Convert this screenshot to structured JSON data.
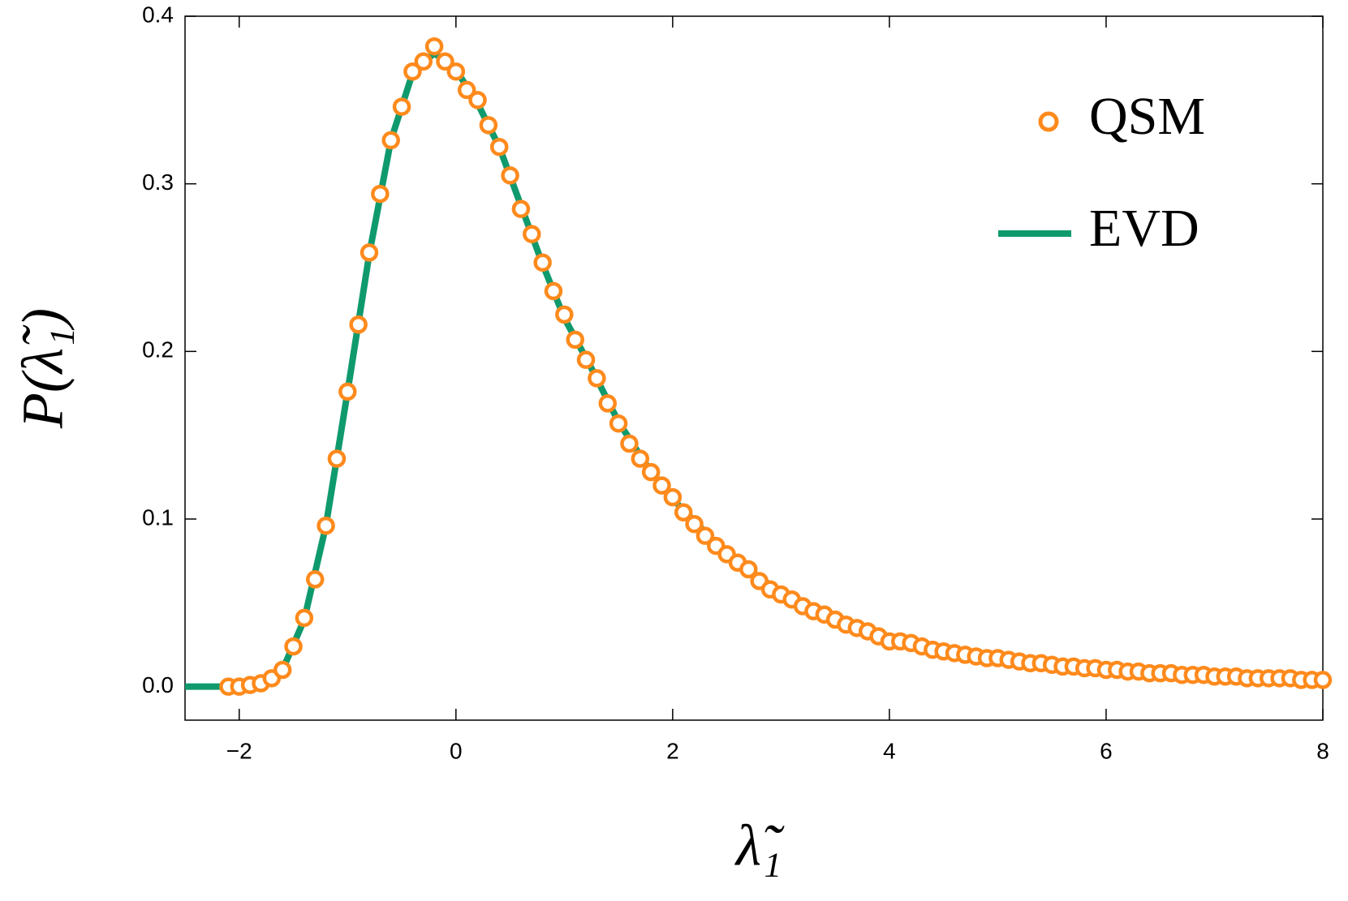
{
  "chart_data": {
    "type": "line-scatter",
    "x_label": "λ̃₁",
    "y_label": "P(λ̃₁)",
    "xlim": [
      -2.5,
      8
    ],
    "ylim": [
      -0.02,
      0.4
    ],
    "xticks": [
      {
        "value": -2,
        "label": "−2"
      },
      0,
      2,
      4,
      6,
      8
    ],
    "yticks": [
      {
        "value": 0,
        "label": "0.0"
      },
      0.1,
      0.2,
      0.3,
      0.4
    ],
    "legend": "top-right",
    "series": [
      {
        "name": "QSM",
        "kind": "scatter",
        "color": "#ff8a1c",
        "x": [
          -2.1,
          -2.0,
          -1.9,
          -1.8,
          -1.7,
          -1.6,
          -1.5,
          -1.4,
          -1.3,
          -1.2,
          -1.1,
          -1.0,
          -0.9,
          -0.8,
          -0.7,
          -0.6,
          -0.5,
          -0.4,
          -0.3,
          -0.2,
          -0.1,
          0.0,
          0.1,
          0.2,
          0.3,
          0.4,
          0.5,
          0.6,
          0.7,
          0.8,
          0.9,
          1.0,
          1.1,
          1.2,
          1.3,
          1.4,
          1.5,
          1.6,
          1.7,
          1.8,
          1.9,
          2.0,
          2.1,
          2.2,
          2.3,
          2.4,
          2.5,
          2.6,
          2.7,
          2.8,
          2.9,
          3.0,
          3.1,
          3.2,
          3.3,
          3.4,
          3.5,
          3.6,
          3.7,
          3.8,
          3.9,
          4.0,
          4.1,
          4.2,
          4.3,
          4.4,
          4.5,
          4.6,
          4.7,
          4.8,
          4.9,
          5.0,
          5.1,
          5.2,
          5.3,
          5.4,
          5.5,
          5.6,
          5.7,
          5.8,
          5.9,
          6.0,
          6.1,
          6.2,
          6.3,
          6.4,
          6.5,
          6.6,
          6.7,
          6.8,
          6.9,
          7.0,
          7.1,
          7.2,
          7.3,
          7.4,
          7.5,
          7.6,
          7.7,
          7.8,
          7.9,
          8.0
        ],
        "values": [
          0.0,
          0.0,
          0.001,
          0.002,
          0.005,
          0.01,
          0.024,
          0.041,
          0.064,
          0.096,
          0.136,
          0.176,
          0.216,
          0.259,
          0.294,
          0.326,
          0.346,
          0.367,
          0.373,
          0.382,
          0.373,
          0.367,
          0.356,
          0.35,
          0.335,
          0.322,
          0.305,
          0.285,
          0.27,
          0.253,
          0.236,
          0.222,
          0.207,
          0.195,
          0.184,
          0.169,
          0.157,
          0.145,
          0.136,
          0.128,
          0.12,
          0.113,
          0.104,
          0.097,
          0.09,
          0.084,
          0.079,
          0.074,
          0.07,
          0.063,
          0.058,
          0.055,
          0.052,
          0.048,
          0.045,
          0.043,
          0.04,
          0.037,
          0.035,
          0.033,
          0.03,
          0.027,
          0.027,
          0.026,
          0.024,
          0.022,
          0.021,
          0.02,
          0.019,
          0.018,
          0.017,
          0.017,
          0.016,
          0.015,
          0.014,
          0.014,
          0.013,
          0.012,
          0.012,
          0.011,
          0.011,
          0.01,
          0.01,
          0.009,
          0.009,
          0.008,
          0.008,
          0.008,
          0.007,
          0.007,
          0.007,
          0.006,
          0.006,
          0.006,
          0.005,
          0.005,
          0.005,
          0.005,
          0.005,
          0.004,
          0.004,
          0.004
        ]
      },
      {
        "name": "EVD",
        "kind": "line",
        "color": "#0f9a6e",
        "x": [
          -2.5,
          -2.0,
          -1.8,
          -1.6,
          -1.4,
          -1.2,
          -1.0,
          -0.8,
          -0.6,
          -0.4,
          -0.2,
          0,
          0.2,
          0.4,
          0.6,
          0.8,
          1.0,
          1.25,
          1.5,
          1.75,
          2,
          2.5,
          3,
          3.5,
          4,
          4.5,
          5,
          5.5,
          6,
          6.5,
          7,
          7.5,
          8
        ],
        "values": [
          0,
          0,
          0.002,
          0.01,
          0.04,
          0.096,
          0.176,
          0.258,
          0.326,
          0.366,
          0.378,
          0.368,
          0.348,
          0.322,
          0.287,
          0.252,
          0.22,
          0.19,
          0.158,
          0.133,
          0.112,
          0.079,
          0.056,
          0.04,
          0.028,
          0.021,
          0.016,
          0.012,
          0.009,
          0.007,
          0.006,
          0.005,
          0.004
        ]
      }
    ]
  }
}
